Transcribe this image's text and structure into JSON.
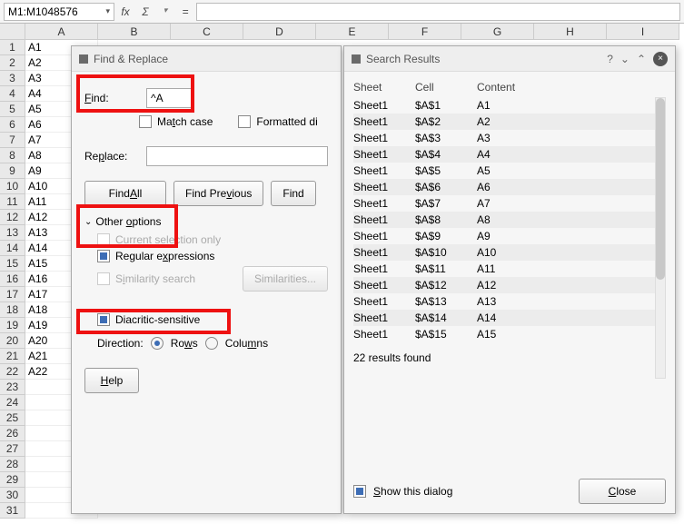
{
  "formula_bar": {
    "namebox": "M1:M1048576",
    "fx1": "fx",
    "fx2": "Σ",
    "fx3": "=",
    "input": ""
  },
  "columns": [
    "A",
    "B",
    "C",
    "D",
    "E",
    "F",
    "G",
    "H",
    "I"
  ],
  "row_values": [
    "A1",
    "A2",
    "A3",
    "A4",
    "A5",
    "A6",
    "A7",
    "A8",
    "A9",
    "A10",
    "A11",
    "A12",
    "A13",
    "A14",
    "A15",
    "A16",
    "A17",
    "A18",
    "A19",
    "A20",
    "A21",
    "A22",
    "",
    "",
    "",
    "",
    "",
    "",
    "",
    "",
    ""
  ],
  "find_dialog": {
    "title": "Find & Replace",
    "find_label": "Find:",
    "find_value": "^A",
    "match_case": "Match case",
    "formatted": "Formatted di",
    "replace_label": "Replace:",
    "replace_value": "",
    "find_all": "Find All",
    "find_prev": "Find Previous",
    "find_next": "Find",
    "other_options": "Other options",
    "cur_sel": "Current selection only",
    "regex": "Regular expressions",
    "sim_search": "Similarity search",
    "similarities_btn": "Similarities...",
    "diacritic": "Diacritic-sensitive",
    "direction": "Direction:",
    "rows": "Rows",
    "columns": "Columns",
    "help": "Help"
  },
  "results_dialog": {
    "title": "Search Results",
    "head_sheet": "Sheet",
    "head_cell": "Cell",
    "head_content": "Content",
    "rows": [
      {
        "sheet": "Sheet1",
        "cell": "$A$1",
        "content": "A1"
      },
      {
        "sheet": "Sheet1",
        "cell": "$A$2",
        "content": "A2"
      },
      {
        "sheet": "Sheet1",
        "cell": "$A$3",
        "content": "A3"
      },
      {
        "sheet": "Sheet1",
        "cell": "$A$4",
        "content": "A4"
      },
      {
        "sheet": "Sheet1",
        "cell": "$A$5",
        "content": "A5"
      },
      {
        "sheet": "Sheet1",
        "cell": "$A$6",
        "content": "A6"
      },
      {
        "sheet": "Sheet1",
        "cell": "$A$7",
        "content": "A7"
      },
      {
        "sheet": "Sheet1",
        "cell": "$A$8",
        "content": "A8"
      },
      {
        "sheet": "Sheet1",
        "cell": "$A$9",
        "content": "A9"
      },
      {
        "sheet": "Sheet1",
        "cell": "$A$10",
        "content": "A10"
      },
      {
        "sheet": "Sheet1",
        "cell": "$A$11",
        "content": "A11"
      },
      {
        "sheet": "Sheet1",
        "cell": "$A$12",
        "content": "A12"
      },
      {
        "sheet": "Sheet1",
        "cell": "$A$13",
        "content": "A13"
      },
      {
        "sheet": "Sheet1",
        "cell": "$A$14",
        "content": "A14"
      },
      {
        "sheet": "Sheet1",
        "cell": "$A$15",
        "content": "A15"
      }
    ],
    "found": "22 results found",
    "show_dialog": "Show this dialog",
    "close": "Close"
  },
  "colors": {
    "highlight": "#e11b1b",
    "dialog_bg": "#f6f6f6",
    "header_bg": "#e9e9e9",
    "alt_row": "#ececec"
  }
}
